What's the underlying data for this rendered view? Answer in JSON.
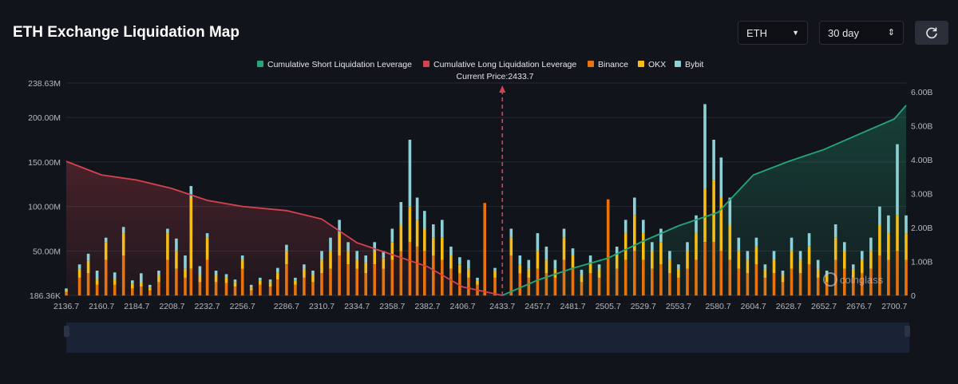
{
  "header": {
    "title": "ETH Exchange Liquidation Map",
    "asset_select": {
      "value": "ETH",
      "icon": "caret-down-icon"
    },
    "range_select": {
      "value": "30 day",
      "icon": "updown-icon"
    },
    "refresh": {
      "icon": "refresh-icon"
    }
  },
  "watermark": "coinglass",
  "colors": {
    "short": "#23a77a",
    "long": "#d6434f",
    "binance": "#e8730c",
    "okx": "#f5bd15",
    "bybit": "#8dd0d6",
    "background": "#12141b"
  },
  "chart_data": {
    "type": "bar",
    "current_price_label": "Current Price:2433.7",
    "current_price": 2433.7,
    "legend": [
      {
        "label": "Cumulative Short Liquidation Leverage",
        "color": "#23a77a"
      },
      {
        "label": "Cumulative Long Liquidation Leverage",
        "color": "#d6434f"
      },
      {
        "label": "Binance",
        "color": "#e8730c"
      },
      {
        "label": "OKX",
        "color": "#f5bd15"
      },
      {
        "label": "Bybit",
        "color": "#8dd0d6"
      }
    ],
    "left_axis_ticks": [
      "238.63M",
      "200.00M",
      "150.00M",
      "100.00M",
      "50.00M",
      "186.36K"
    ],
    "left_axis_values": [
      238630000,
      200000000,
      150000000,
      100000000,
      50000000,
      186360
    ],
    "right_axis_ticks": [
      "6.00B",
      "5.00B",
      "4.00B",
      "3.00B",
      "2.00B",
      "1.00B",
      "0"
    ],
    "right_axis_values": [
      6000000000,
      5000000000,
      4000000000,
      3000000000,
      2000000000,
      1000000000,
      0
    ],
    "x_ticks": [
      "2136.7",
      "2160.7",
      "2184.7",
      "2208.7",
      "2232.7",
      "2256.7",
      "2286.7",
      "2310.7",
      "2334.7",
      "2358.7",
      "2382.7",
      "2406.7",
      "2433.7",
      "2457.7",
      "2481.7",
      "2505.7",
      "2529.7",
      "2553.7",
      "2580.7",
      "2604.7",
      "2628.7",
      "2652.7",
      "2676.7",
      "2700.7"
    ],
    "x_range": [
      2136.7,
      2708.7
    ],
    "long_cumulative": {
      "x": [
        2136.7,
        2160.7,
        2184.7,
        2208.7,
        2232.7,
        2256.7,
        2286.7,
        2310.7,
        2334.7,
        2358.7,
        2382.7,
        2406.7,
        2433.7
      ],
      "values": [
        3950000000.0,
        3550000000.0,
        3400000000.0,
        3150000000.0,
        2800000000.0,
        2620000000.0,
        2500000000.0,
        2250000000.0,
        1550000000.0,
        1200000000.0,
        850000000.0,
        250000000.0,
        0
      ]
    },
    "short_cumulative": {
      "x": [
        2433.7,
        2457.7,
        2481.7,
        2505.7,
        2529.7,
        2553.7,
        2580.7,
        2604.7,
        2628.7,
        2652.7,
        2676.7,
        2700.7,
        2708.7
      ],
      "values": [
        0,
        450000000.0,
        800000000.0,
        1100000000.0,
        1600000000.0,
        2050000000.0,
        2450000000.0,
        3550000000.0,
        3950000000.0,
        4300000000.0,
        4750000000.0,
        5200000000.0,
        5600000000.0
      ]
    },
    "bars": [
      {
        "x": 2136.7,
        "binance": 4000000,
        "okx": 2000000,
        "bybit": 2000000
      },
      {
        "x": 2145.7,
        "binance": 20000000,
        "okx": 10000000,
        "bybit": 5000000
      },
      {
        "x": 2151.7,
        "binance": 25000000,
        "okx": 14000000,
        "bybit": 8000000
      },
      {
        "x": 2157.7,
        "binance": 12000000,
        "okx": 6000000,
        "bybit": 10000000
      },
      {
        "x": 2163.7,
        "binance": 40000000,
        "okx": 20000000,
        "bybit": 5000000
      },
      {
        "x": 2169.7,
        "binance": 12000000,
        "okx": 6000000,
        "bybit": 8000000
      },
      {
        "x": 2175.7,
        "binance": 45000000,
        "okx": 25000000,
        "bybit": 7000000
      },
      {
        "x": 2181.7,
        "binance": 8000000,
        "okx": 5000000,
        "bybit": 4000000
      },
      {
        "x": 2187.7,
        "binance": 10000000,
        "okx": 5000000,
        "bybit": 10000000
      },
      {
        "x": 2193.7,
        "binance": 6000000,
        "okx": 3000000,
        "bybit": 3000000
      },
      {
        "x": 2199.7,
        "binance": 15000000,
        "okx": 8000000,
        "bybit": 5000000
      },
      {
        "x": 2205.7,
        "binance": 40000000,
        "okx": 30000000,
        "bybit": 5000000
      },
      {
        "x": 2211.7,
        "binance": 30000000,
        "okx": 20000000,
        "bybit": 14000000
      },
      {
        "x": 2217.7,
        "binance": 20000000,
        "okx": 10000000,
        "bybit": 15000000
      },
      {
        "x": 2221.7,
        "binance": 30000000,
        "okx": 80000000,
        "bybit": 13000000
      },
      {
        "x": 2227.7,
        "binance": 15000000,
        "okx": 8000000,
        "bybit": 10000000
      },
      {
        "x": 2232.7,
        "binance": 40000000,
        "okx": 25000000,
        "bybit": 5000000
      },
      {
        "x": 2238.7,
        "binance": 15000000,
        "okx": 8000000,
        "bybit": 5000000
      },
      {
        "x": 2245.7,
        "binance": 14000000,
        "okx": 6000000,
        "bybit": 4000000
      },
      {
        "x": 2251.7,
        "binance": 10000000,
        "okx": 5000000,
        "bybit": 3000000
      },
      {
        "x": 2256.7,
        "binance": 30000000,
        "okx": 10000000,
        "bybit": 5000000
      },
      {
        "x": 2262.7,
        "binance": 6000000,
        "okx": 3000000,
        "bybit": 3000000
      },
      {
        "x": 2268.7,
        "binance": 12000000,
        "okx": 5000000,
        "bybit": 3000000
      },
      {
        "x": 2275.7,
        "binance": 10000000,
        "okx": 5000000,
        "bybit": 3000000
      },
      {
        "x": 2280.7,
        "binance": 18000000,
        "okx": 8000000,
        "bybit": 5000000
      },
      {
        "x": 2286.7,
        "binance": 35000000,
        "okx": 15000000,
        "bybit": 7000000
      },
      {
        "x": 2292.7,
        "binance": 12000000,
        "okx": 5000000,
        "bybit": 3000000
      },
      {
        "x": 2298.7,
        "binance": 20000000,
        "okx": 10000000,
        "bybit": 5000000
      },
      {
        "x": 2304.7,
        "binance": 15000000,
        "okx": 8000000,
        "bybit": 5000000
      },
      {
        "x": 2310.7,
        "binance": 25000000,
        "okx": 15000000,
        "bybit": 10000000
      },
      {
        "x": 2316.7,
        "binance": 30000000,
        "okx": 20000000,
        "bybit": 15000000
      },
      {
        "x": 2322.7,
        "binance": 45000000,
        "okx": 25000000,
        "bybit": 15000000
      },
      {
        "x": 2328.7,
        "binance": 35000000,
        "okx": 15000000,
        "bybit": 10000000
      },
      {
        "x": 2334.7,
        "binance": 30000000,
        "okx": 10000000,
        "bybit": 10000000
      },
      {
        "x": 2340.7,
        "binance": 25000000,
        "okx": 12000000,
        "bybit": 8000000
      },
      {
        "x": 2346.7,
        "binance": 35000000,
        "okx": 15000000,
        "bybit": 10000000
      },
      {
        "x": 2352.7,
        "binance": 30000000,
        "okx": 12000000,
        "bybit": 8000000
      },
      {
        "x": 2358.7,
        "binance": 40000000,
        "okx": 20000000,
        "bybit": 15000000
      },
      {
        "x": 2364.7,
        "binance": 50000000,
        "okx": 30000000,
        "bybit": 25000000
      },
      {
        "x": 2370.7,
        "binance": 60000000,
        "okx": 40000000,
        "bybit": 75000000
      },
      {
        "x": 2375.7,
        "binance": 55000000,
        "okx": 30000000,
        "bybit": 25000000
      },
      {
        "x": 2380.7,
        "binance": 50000000,
        "okx": 25000000,
        "bybit": 20000000
      },
      {
        "x": 2386.7,
        "binance": 45000000,
        "okx": 20000000,
        "bybit": 15000000
      },
      {
        "x": 2392.7,
        "binance": 40000000,
        "okx": 25000000,
        "bybit": 20000000
      },
      {
        "x": 2398.7,
        "binance": 30000000,
        "okx": 15000000,
        "bybit": 10000000
      },
      {
        "x": 2404.7,
        "binance": 25000000,
        "okx": 10000000,
        "bybit": 8000000
      },
      {
        "x": 2410.7,
        "binance": 20000000,
        "okx": 10000000,
        "bybit": 10000000
      },
      {
        "x": 2416.7,
        "binance": 12000000,
        "okx": 5000000,
        "bybit": 3000000
      },
      {
        "x": 2421.7,
        "binance": 104000000,
        "okx": 0,
        "bybit": 0
      },
      {
        "x": 2428.7,
        "binance": 20000000,
        "okx": 8000000,
        "bybit": 3000000
      },
      {
        "x": 2439.7,
        "binance": 45000000,
        "okx": 20000000,
        "bybit": 10000000
      },
      {
        "x": 2445.7,
        "binance": 25000000,
        "okx": 10000000,
        "bybit": 10000000
      },
      {
        "x": 2451.7,
        "binance": 20000000,
        "okx": 10000000,
        "bybit": 10000000
      },
      {
        "x": 2457.7,
        "binance": 30000000,
        "okx": 20000000,
        "bybit": 20000000
      },
      {
        "x": 2463.7,
        "binance": 25000000,
        "okx": 15000000,
        "bybit": 15000000
      },
      {
        "x": 2469.7,
        "binance": 20000000,
        "okx": 10000000,
        "bybit": 10000000
      },
      {
        "x": 2475.7,
        "binance": 40000000,
        "okx": 25000000,
        "bybit": 10000000
      },
      {
        "x": 2481.7,
        "binance": 30000000,
        "okx": 15000000,
        "bybit": 8000000
      },
      {
        "x": 2487.7,
        "binance": 15000000,
        "okx": 8000000,
        "bybit": 6000000
      },
      {
        "x": 2493.7,
        "binance": 25000000,
        "okx": 12000000,
        "bybit": 8000000
      },
      {
        "x": 2499.7,
        "binance": 20000000,
        "okx": 10000000,
        "bybit": 5000000
      },
      {
        "x": 2505.7,
        "binance": 108000000,
        "okx": 0,
        "bybit": 0
      },
      {
        "x": 2511.7,
        "binance": 30000000,
        "okx": 15000000,
        "bybit": 10000000
      },
      {
        "x": 2517.7,
        "binance": 40000000,
        "okx": 30000000,
        "bybit": 15000000
      },
      {
        "x": 2523.7,
        "binance": 50000000,
        "okx": 40000000,
        "bybit": 20000000
      },
      {
        "x": 2529.7,
        "binance": 40000000,
        "okx": 30000000,
        "bybit": 15000000
      },
      {
        "x": 2535.7,
        "binance": 30000000,
        "okx": 20000000,
        "bybit": 10000000
      },
      {
        "x": 2541.7,
        "binance": 35000000,
        "okx": 25000000,
        "bybit": 15000000
      },
      {
        "x": 2547.7,
        "binance": 25000000,
        "okx": 15000000,
        "bybit": 10000000
      },
      {
        "x": 2553.7,
        "binance": 20000000,
        "okx": 10000000,
        "bybit": 5000000
      },
      {
        "x": 2559.7,
        "binance": 30000000,
        "okx": 20000000,
        "bybit": 10000000
      },
      {
        "x": 2565.7,
        "binance": 40000000,
        "okx": 30000000,
        "bybit": 20000000
      },
      {
        "x": 2571.7,
        "binance": 60000000,
        "okx": 60000000,
        "bybit": 95000000
      },
      {
        "x": 2577.7,
        "binance": 60000000,
        "okx": 70000000,
        "bybit": 45000000
      },
      {
        "x": 2582.7,
        "binance": 50000000,
        "okx": 60000000,
        "bybit": 45000000
      },
      {
        "x": 2588.7,
        "binance": 40000000,
        "okx": 40000000,
        "bybit": 30000000
      },
      {
        "x": 2594.7,
        "binance": 30000000,
        "okx": 20000000,
        "bybit": 15000000
      },
      {
        "x": 2600.7,
        "binance": 25000000,
        "okx": 15000000,
        "bybit": 10000000
      },
      {
        "x": 2606.7,
        "binance": 35000000,
        "okx": 20000000,
        "bybit": 10000000
      },
      {
        "x": 2612.7,
        "binance": 20000000,
        "okx": 10000000,
        "bybit": 5000000
      },
      {
        "x": 2618.7,
        "binance": 25000000,
        "okx": 15000000,
        "bybit": 10000000
      },
      {
        "x": 2624.7,
        "binance": 15000000,
        "okx": 8000000,
        "bybit": 5000000
      },
      {
        "x": 2630.7,
        "binance": 30000000,
        "okx": 20000000,
        "bybit": 15000000
      },
      {
        "x": 2636.7,
        "binance": 25000000,
        "okx": 15000000,
        "bybit": 10000000
      },
      {
        "x": 2642.7,
        "binance": 35000000,
        "okx": 20000000,
        "bybit": 15000000
      },
      {
        "x": 2648.7,
        "binance": 20000000,
        "okx": 10000000,
        "bybit": 10000000
      },
      {
        "x": 2654.7,
        "binance": 15000000,
        "okx": 8000000,
        "bybit": 5000000
      },
      {
        "x": 2660.7,
        "binance": 40000000,
        "okx": 25000000,
        "bybit": 15000000
      },
      {
        "x": 2666.7,
        "binance": 30000000,
        "okx": 20000000,
        "bybit": 10000000
      },
      {
        "x": 2672.7,
        "binance": 20000000,
        "okx": 10000000,
        "bybit": 5000000
      },
      {
        "x": 2678.7,
        "binance": 25000000,
        "okx": 15000000,
        "bybit": 10000000
      },
      {
        "x": 2684.7,
        "binance": 30000000,
        "okx": 20000000,
        "bybit": 15000000
      },
      {
        "x": 2690.7,
        "binance": 45000000,
        "okx": 35000000,
        "bybit": 20000000
      },
      {
        "x": 2696.7,
        "binance": 40000000,
        "okx": 30000000,
        "bybit": 20000000
      },
      {
        "x": 2702.7,
        "binance": 50000000,
        "okx": 40000000,
        "bybit": 80000000
      },
      {
        "x": 2708.7,
        "binance": 40000000,
        "okx": 30000000,
        "bybit": 20000000
      }
    ]
  }
}
